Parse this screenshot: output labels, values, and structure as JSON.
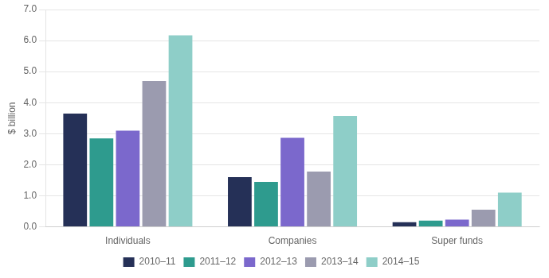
{
  "chart_data": {
    "type": "bar",
    "categories": [
      "Individuals",
      "Companies",
      "Super funds"
    ],
    "series": [
      {
        "name": "2010–11",
        "color": "#253057",
        "values": [
          3.65,
          1.6,
          0.15
        ]
      },
      {
        "name": "2011–12",
        "color": "#2e9b8e",
        "values": [
          2.85,
          1.45,
          0.2
        ]
      },
      {
        "name": "2012–13",
        "color": "#7b68cc",
        "values": [
          3.1,
          2.87,
          0.23
        ]
      },
      {
        "name": "2013–14",
        "color": "#9b9baf",
        "values": [
          4.7,
          1.78,
          0.55
        ]
      },
      {
        "name": "2014–15",
        "color": "#8ecec8",
        "values": [
          6.17,
          3.57,
          1.1
        ]
      }
    ],
    "ylabel": "$ billion",
    "ylim": [
      0,
      7.0
    ],
    "yticks": [
      {
        "value": 0.0,
        "label": "0.0"
      },
      {
        "value": 1.0,
        "label": "1.0"
      },
      {
        "value": 2.0,
        "label": "2.0"
      },
      {
        "value": 3.0,
        "label": "3.0"
      },
      {
        "value": 4.0,
        "label": "4.0"
      },
      {
        "value": 5.0,
        "label": "5.0"
      },
      {
        "value": 6.0,
        "label": "6.0"
      },
      {
        "value": 7.0,
        "label": "7.0"
      }
    ],
    "grid": true,
    "legend": "bottom"
  }
}
